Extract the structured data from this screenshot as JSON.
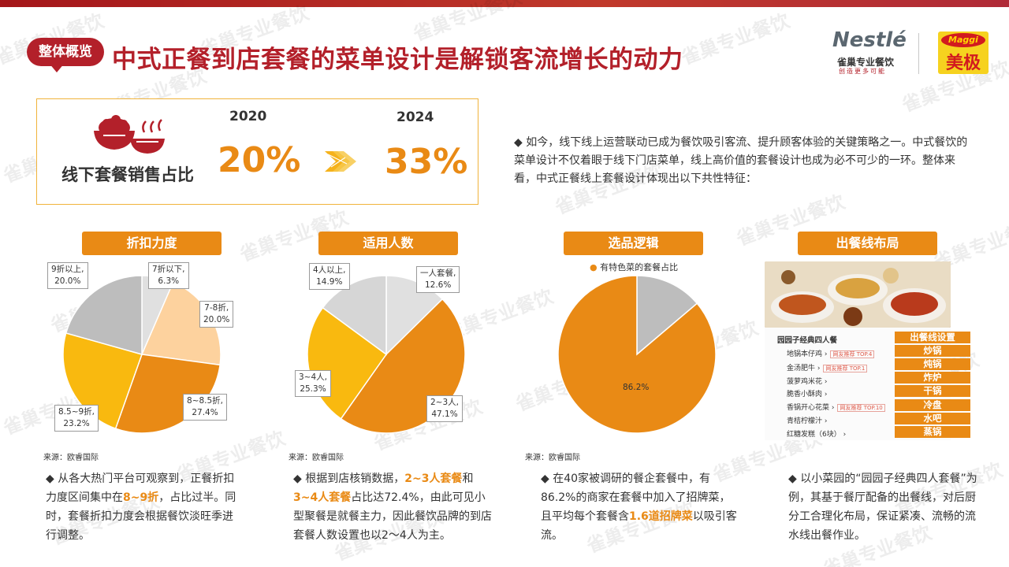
{
  "header": {
    "badge": "整体概览",
    "title": "中式正餐到店套餐的菜单设计是解锁客流增长的动力"
  },
  "logos": {
    "nestle_word": "Nestlé",
    "nestle_sub": "雀巢专业餐饮",
    "nestle_slogan": "创造更多可能",
    "maggi_word": "Maggi",
    "maggi_cn": "美极"
  },
  "watermark": "雀巢专业餐饮",
  "stat": {
    "label": "线下套餐销售占比",
    "year_a": "2020",
    "value_a": "20%",
    "year_b": "2024",
    "value_b": "33%"
  },
  "intro": "◆ 如今，线下线上运营联动已成为餐饮吸引客流、提升顾客体验的关键策略之一。中式餐饮的菜单设计不仅着眼于线下门店菜单，线上高价值的套餐设计也成为必不可少的一环。整体来看，中式正餐线上套餐设计体现出以下共性特征：",
  "colors": {
    "brand_red": "#b3202a",
    "accent_orange": "#e98a15"
  },
  "sections": [
    {
      "heading": "折扣力度",
      "source": "来源：欧睿国际",
      "bullet_parts": [
        "◆ 从各大热门平台可观察到，正餐折扣力度区间集中在",
        "8~9折",
        "，占比过半。同时，套餐折扣力度会根据餐饮淡旺季进行调整。"
      ]
    },
    {
      "heading": "适用人数",
      "source": "来源：欧睿国际",
      "bullet_parts": [
        "◆ 根据到店核销数据，",
        "2~3人套餐",
        "和",
        "3~4人套餐",
        "占比达72.4%，由此可见小型聚餐是就餐主力，因此餐饮品牌的到店套餐人数设置也以2～4人为主。"
      ]
    },
    {
      "heading": "选品逻辑",
      "source": "来源：欧睿国际",
      "bullet_parts": [
        "◆ 在40家被调研的餐企套餐中，有86.2%的商家在套餐中加入了招牌菜，且平均每个套餐含",
        "1.6道招牌菜",
        "以吸引客流。"
      ]
    },
    {
      "heading": "出餐线布局",
      "bullet_parts": [
        "◆ 以小菜园的“园园子经典四人套餐”为例，其基于餐厅配备的出餐线，对后厨分工合理化布局，保证紧凑、流畅的流水线出餐作业。"
      ]
    }
  ],
  "chart_data": [
    {
      "type": "pie",
      "title": "",
      "slices": [
        {
          "label": "7折以下,",
          "value": 6.3,
          "display": "6.3%",
          "color": "#e0e0e0"
        },
        {
          "label": "7-8折,",
          "value": 20.0,
          "display": "20.0%",
          "color": "#fdd29e"
        },
        {
          "label": "8~8.5折,",
          "value": 27.4,
          "display": "27.4%",
          "color": "#e98a15"
        },
        {
          "label": "8.5~9折,",
          "value": 23.2,
          "display": "23.2%",
          "color": "#f9b90f"
        },
        {
          "label": "9折以上,",
          "value": 20.0,
          "display": "20.0%",
          "color": "#bdbdbd"
        }
      ]
    },
    {
      "type": "pie",
      "title": "",
      "slices": [
        {
          "label": "一人套餐,",
          "value": 12.6,
          "display": "12.6%",
          "color": "#e0e0e0"
        },
        {
          "label": "2~3人,",
          "value": 47.1,
          "display": "47.1%",
          "color": "#e98a15"
        },
        {
          "label": "3~4人,",
          "value": 25.3,
          "display": "25.3%",
          "color": "#f9b90f"
        },
        {
          "label": "4人以上,",
          "value": 14.9,
          "display": "14.9%",
          "color": "#d6d6d6"
        }
      ]
    },
    {
      "type": "pie",
      "title": "",
      "legend": "有特色菜的套餐占比",
      "slices": [
        {
          "label": "",
          "value": 13.8,
          "display": "",
          "color": "#bdbdbd"
        },
        {
          "label": "",
          "value": 86.2,
          "display": "86.2%",
          "color": "#e98a15"
        }
      ]
    }
  ],
  "menu": {
    "title": "园园子经典四人餐",
    "items": [
      {
        "name": "地锅本仔鸡 ›",
        "tag": "网友推荐 TOP.4"
      },
      {
        "name": "金汤肥牛 ›",
        "tag": "网友推荐 TOP.1"
      },
      {
        "name": "菠萝鸡米花 ›",
        "tag": ""
      },
      {
        "name": "脆香小酥肉 ›",
        "tag": ""
      },
      {
        "name": "香锅开心花菜 ›",
        "tag": "网友推荐 TOP.10"
      },
      {
        "name": "青桔柠檬汁 ›",
        "tag": ""
      },
      {
        "name": "红糖发糕（6块） ›",
        "tag": ""
      }
    ],
    "layout_title": "出餐线设置",
    "layout_items": [
      "炒锅",
      "炖锅",
      "炸炉",
      "干锅",
      "冷盘",
      "水吧",
      "蒸锅"
    ]
  }
}
